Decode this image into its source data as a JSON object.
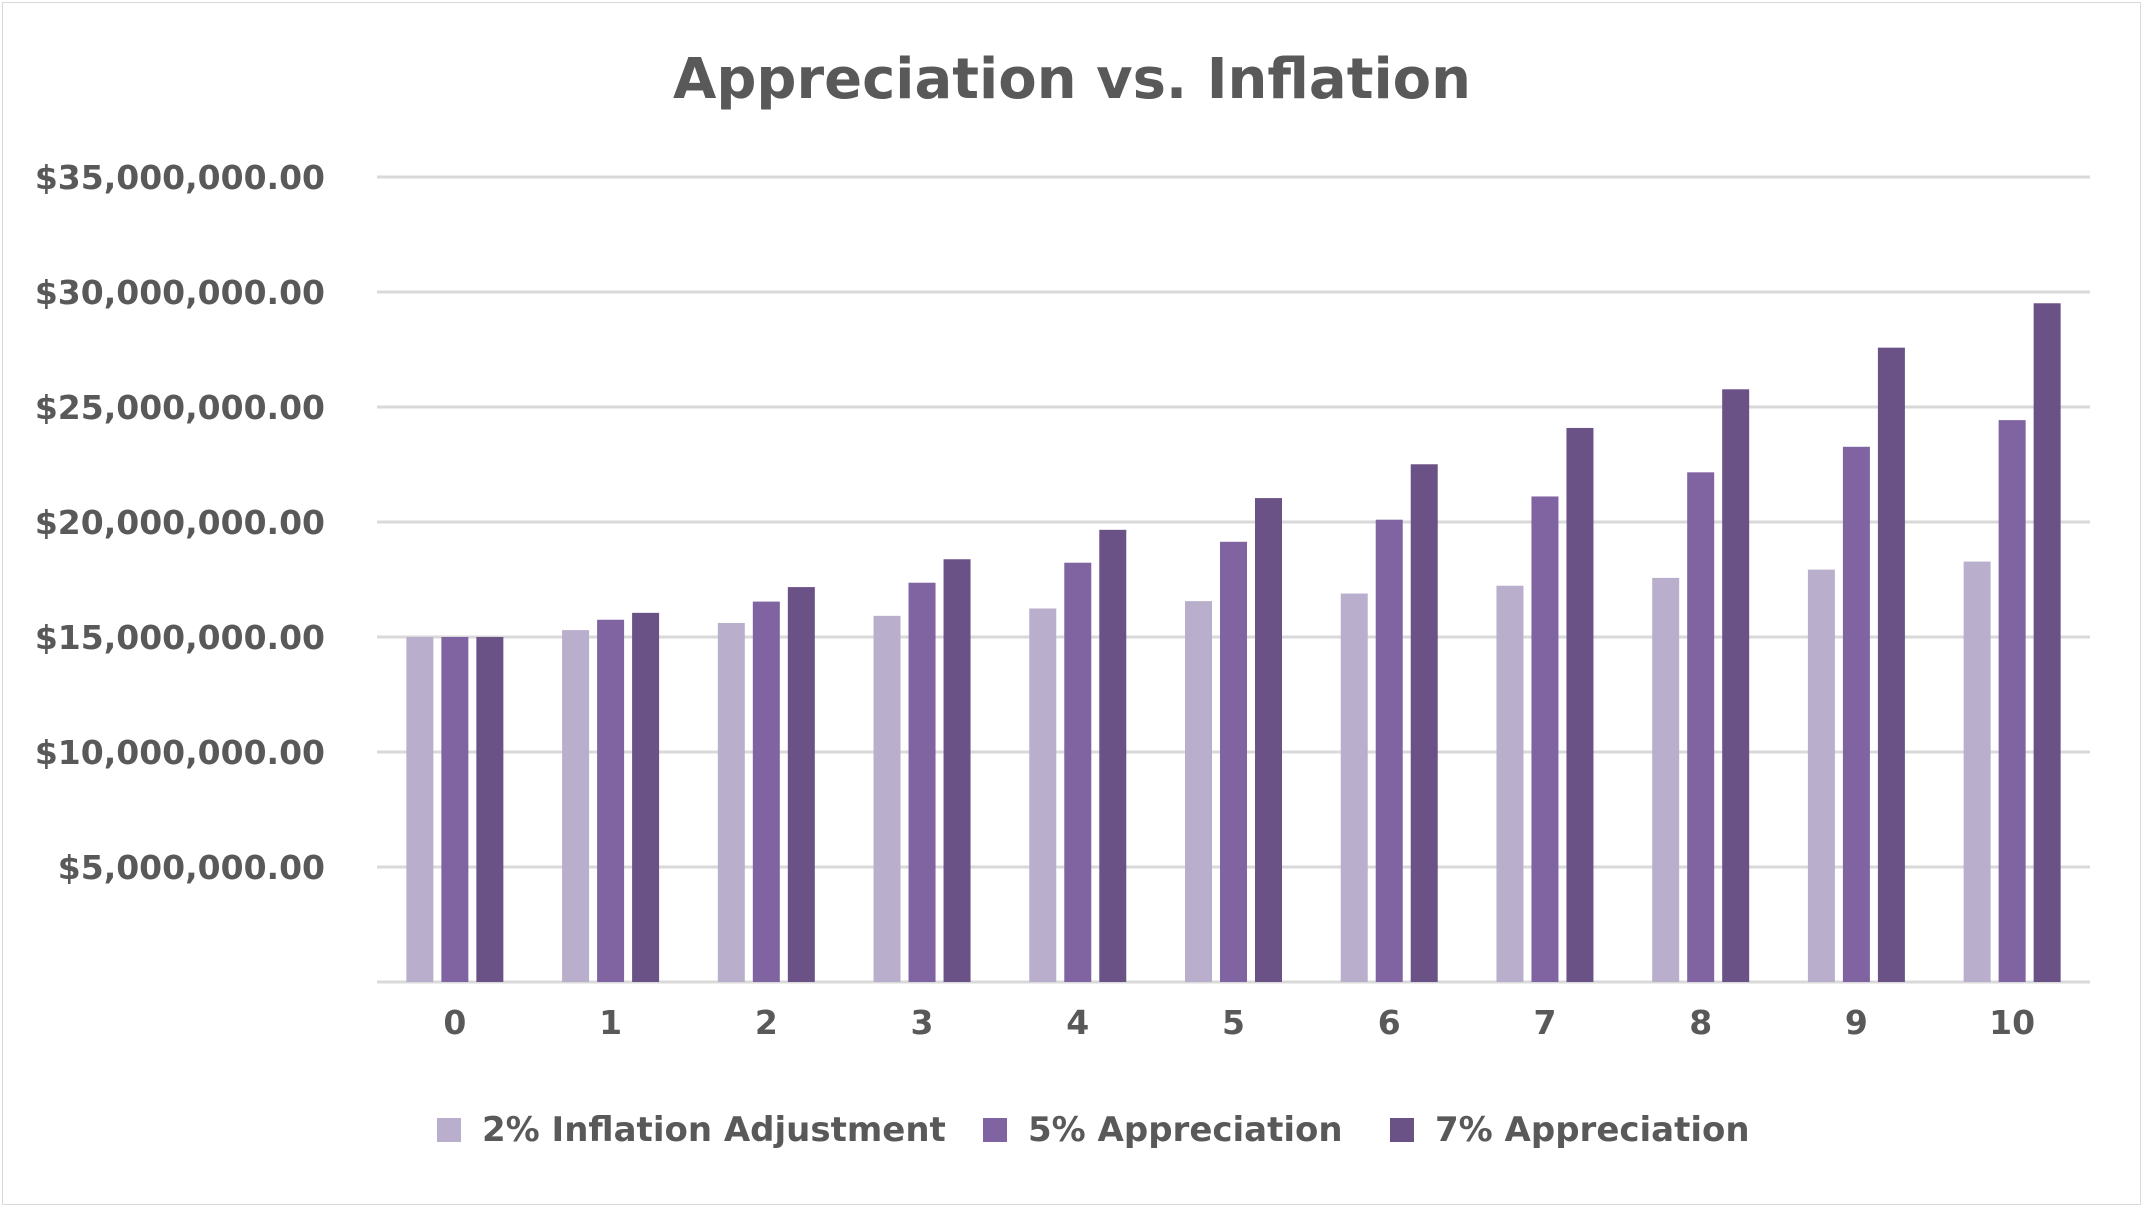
{
  "chart_data": {
    "type": "bar",
    "title": "Appreciation vs. Inflation",
    "xlabel": "",
    "ylabel": "",
    "categories": [
      "0",
      "1",
      "2",
      "3",
      "4",
      "5",
      "6",
      "7",
      "8",
      "9",
      "10"
    ],
    "series": [
      {
        "name": "2% Inflation Adjustment",
        "color": "#b9afcc",
        "values": [
          15000000,
          15300000,
          15610000,
          15920000,
          16240000,
          16560000,
          16890000,
          17230000,
          17570000,
          17930000,
          18280000
        ]
      },
      {
        "name": "5% Appreciation",
        "color": "#8064a2",
        "values": [
          15000000,
          15750000,
          16540000,
          17360000,
          18230000,
          19140000,
          20100000,
          21110000,
          22160000,
          23270000,
          24430000
        ]
      },
      {
        "name": "7% Appreciation",
        "color": "#6a5287",
        "values": [
          15000000,
          16050000,
          17170000,
          18380000,
          19660000,
          21040000,
          22510000,
          24090000,
          25770000,
          27580000,
          29510000
        ]
      }
    ],
    "ylim": [
      0,
      35000000
    ],
    "y_ticks": [
      {
        "value": 5000000,
        "label": "$5,000,000.00"
      },
      {
        "value": 10000000,
        "label": "$10,000,000.00"
      },
      {
        "value": 15000000,
        "label": "$15,000,000.00"
      },
      {
        "value": 20000000,
        "label": "$20,000,000.00"
      },
      {
        "value": 25000000,
        "label": "$25,000,000.00"
      },
      {
        "value": 30000000,
        "label": "$30,000,000.00"
      },
      {
        "value": 35000000,
        "label": "$35,000,000.00"
      }
    ],
    "grid": true,
    "legend": "bottom"
  }
}
